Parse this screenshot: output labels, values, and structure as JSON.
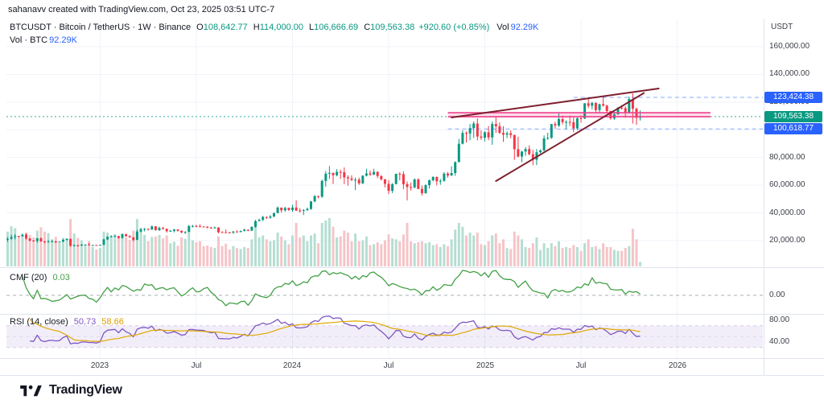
{
  "watermark": "sahanavv created with TradingView.com, Oct 23, 2025 03:51 UTC-7",
  "legend": {
    "symbol_title": "BTCUSDT · Bitcoin / TetherUS · 1W · Binance",
    "ohlc": [
      {
        "k": "O",
        "v": "108,642.77"
      },
      {
        "k": "H",
        "v": "114,000.00"
      },
      {
        "k": "L",
        "v": "106,666.69"
      },
      {
        "k": "C",
        "v": "109,563.38"
      }
    ],
    "change": "+920.60 (+0.85%)",
    "vol_label": "Vol",
    "vol_value": "92.29K",
    "row2_label": "Vol · BTC",
    "row2_value": "92.29K"
  },
  "price_axis": {
    "currency": "USDT",
    "ticks": [
      {
        "label": "160,000.00",
        "value": 160000
      },
      {
        "label": "140,000.00",
        "value": 140000
      },
      {
        "label": "120,000.00",
        "value": 120000
      },
      {
        "label": "100,000.00",
        "value": 100000
      },
      {
        "label": "80,000.00",
        "value": 80000
      },
      {
        "label": "60,000.00",
        "value": 60000
      },
      {
        "label": "40,000.00",
        "value": 40000
      },
      {
        "label": "20,000.00",
        "value": 20000
      }
    ],
    "badges": [
      {
        "text": "123,424.38",
        "price": 123424.38,
        "bg": "#2962FF"
      },
      {
        "text": "109,563.38",
        "price": 109563.38,
        "bg": "#089981"
      },
      {
        "text": "100,618.77",
        "price": 100618.77,
        "bg": "#2962FF"
      }
    ]
  },
  "time_axis": {
    "ticks": [
      {
        "label": "2023",
        "week": 25
      },
      {
        "label": "Jul",
        "week": 51
      },
      {
        "label": "2024",
        "week": 77
      },
      {
        "label": "Jul",
        "week": 103
      },
      {
        "label": "2025",
        "week": 129
      },
      {
        "label": "Jul",
        "week": 155
      },
      {
        "label": "2026",
        "week": 181
      }
    ]
  },
  "panes": {
    "cmf": {
      "label": "CMF (20)",
      "value": "0.03",
      "zero_label": "0.00",
      "zero_value": 0
    },
    "rsi": {
      "label": "RSI (14, close)",
      "value": "50.73",
      "ma_value": "58.66",
      "ticks": [
        {
          "label": "80.00",
          "value": 80
        },
        {
          "label": "40.00",
          "value": 40
        }
      ]
    }
  },
  "footer": {
    "brand": "TradingView"
  },
  "colors": {
    "up": "#089981",
    "down": "#F23645",
    "volUp": "#b5ded2",
    "volDown": "#f6c4c8",
    "blue": "#2962FF",
    "grid": "#f0f3fa",
    "divider": "#e0e3eb",
    "wedge": "#7e1f2e",
    "channel": "#f0408c",
    "channelFill": "rgba(240,64,140,0.18)",
    "cmf": "#43A047",
    "rsi": "#7E57C2",
    "rsiMa": "#E0A800",
    "band": "rgba(126,87,194,0.10)",
    "bandLine": "rgba(126,87,194,0.5)",
    "dash": "#9598a1",
    "axisText": "#3a3e47"
  },
  "chart_data": {
    "type": "candlestick",
    "symbol": "BTCUSDT",
    "exchange": "Binance",
    "interval": "1W",
    "start_week": "2022-07-11",
    "price_axis_range": [
      160000,
      20000
    ],
    "ohlc_current": {
      "o": 108642.77,
      "h": 114000.0,
      "l": 106666.69,
      "c": 109563.38,
      "vol_k": 92.29,
      "change": 920.6,
      "change_pct": 0.85
    },
    "indicators": [
      {
        "name": "CMF",
        "period": 20,
        "last": 0.03
      },
      {
        "name": "RSI",
        "period": 14,
        "source": "close",
        "last": 50.73,
        "ma_last": 58.66
      }
    ],
    "candles": [
      [
        20900,
        22500,
        19200,
        21200,
        720
      ],
      [
        21200,
        24300,
        20700,
        22600,
        830
      ],
      [
        22600,
        24700,
        20900,
        23300,
        790
      ],
      [
        23300,
        23500,
        22400,
        23200,
        610
      ],
      [
        23200,
        25000,
        22800,
        24300,
        640
      ],
      [
        24300,
        25200,
        20800,
        21500,
        700
      ],
      [
        21500,
        21800,
        19500,
        20000,
        650
      ],
      [
        20000,
        20500,
        19600,
        19800,
        600
      ],
      [
        19800,
        21800,
        18500,
        21700,
        740
      ],
      [
        21700,
        22400,
        19300,
        19400,
        810
      ],
      [
        19400,
        19700,
        18100,
        18900,
        720
      ],
      [
        18900,
        20400,
        18600,
        19300,
        690
      ],
      [
        19300,
        20500,
        19000,
        19400,
        560
      ],
      [
        19400,
        19900,
        18200,
        19100,
        610
      ],
      [
        19100,
        19600,
        18700,
        19200,
        480
      ],
      [
        19200,
        21000,
        19100,
        20600,
        590
      ],
      [
        20600,
        21500,
        20000,
        21300,
        580
      ],
      [
        21300,
        21400,
        15500,
        16300,
        980
      ],
      [
        16300,
        17200,
        15800,
        16700,
        680
      ],
      [
        16700,
        16900,
        15500,
        16500,
        590
      ],
      [
        16500,
        17400,
        16000,
        17100,
        540
      ],
      [
        17100,
        17400,
        16700,
        17100,
        440
      ],
      [
        17100,
        18400,
        16500,
        16800,
        520
      ],
      [
        16800,
        17000,
        16300,
        16800,
        400
      ],
      [
        16800,
        17000,
        16400,
        16500,
        350
      ],
      [
        16500,
        17000,
        16500,
        16900,
        380
      ],
      [
        16900,
        21300,
        16900,
        20900,
        720
      ],
      [
        20900,
        23300,
        20400,
        22700,
        700
      ],
      [
        22700,
        23800,
        22300,
        23000,
        640
      ],
      [
        23000,
        24200,
        22700,
        23300,
        660
      ],
      [
        23300,
        23400,
        21400,
        21900,
        620
      ],
      [
        21900,
        25000,
        21500,
        24600,
        680
      ],
      [
        24600,
        25100,
        22800,
        23200,
        600
      ],
      [
        23200,
        23900,
        22100,
        22400,
        550
      ],
      [
        22400,
        22600,
        19600,
        20500,
        740
      ],
      [
        20500,
        27800,
        20400,
        26500,
        980
      ],
      [
        26500,
        28800,
        26100,
        28000,
        800
      ],
      [
        28000,
        29200,
        26600,
        28500,
        650
      ],
      [
        28500,
        28800,
        27300,
        28000,
        520
      ],
      [
        28000,
        31000,
        27800,
        30300,
        610
      ],
      [
        30300,
        30500,
        27200,
        27600,
        620
      ],
      [
        27600,
        30100,
        26900,
        29200,
        650
      ],
      [
        29200,
        29900,
        27900,
        28500,
        580
      ],
      [
        28500,
        28700,
        25800,
        26800,
        640
      ],
      [
        26800,
        27700,
        26400,
        27100,
        480
      ],
      [
        27100,
        28500,
        25900,
        28100,
        510
      ],
      [
        28100,
        28300,
        26500,
        27100,
        430
      ],
      [
        27100,
        27400,
        25400,
        25900,
        600
      ],
      [
        25900,
        26800,
        24800,
        26300,
        570
      ],
      [
        26300,
        31400,
        26100,
        30500,
        760
      ],
      [
        30500,
        31300,
        29500,
        30600,
        540
      ],
      [
        30600,
        31500,
        29700,
        30300,
        500
      ],
      [
        30300,
        31800,
        29900,
        30200,
        520
      ],
      [
        30200,
        30400,
        29600,
        30100,
        420
      ],
      [
        30100,
        30300,
        28900,
        29400,
        430
      ],
      [
        29400,
        30000,
        28600,
        29000,
        400
      ],
      [
        29000,
        30200,
        28900,
        29400,
        380
      ],
      [
        29400,
        29700,
        25200,
        26100,
        620
      ],
      [
        26100,
        26800,
        25800,
        26000,
        420
      ],
      [
        26000,
        28100,
        25400,
        25900,
        470
      ],
      [
        25900,
        26400,
        25300,
        25800,
        350
      ],
      [
        25800,
        26900,
        24900,
        26500,
        420
      ],
      [
        26500,
        27500,
        26100,
        26200,
        380
      ],
      [
        26200,
        27300,
        25900,
        26900,
        360
      ],
      [
        26900,
        28600,
        26700,
        27900,
        400
      ],
      [
        27900,
        28100,
        26800,
        27200,
        380
      ],
      [
        27200,
        30300,
        26900,
        29900,
        560
      ],
      [
        29900,
        35000,
        29300,
        34100,
        820
      ],
      [
        34100,
        35900,
        34000,
        35000,
        600
      ],
      [
        35000,
        37900,
        34100,
        37100,
        640
      ],
      [
        37100,
        37400,
        35500,
        36500,
        560
      ],
      [
        36500,
        38400,
        35800,
        37400,
        520
      ],
      [
        37400,
        40200,
        36900,
        39900,
        540
      ],
      [
        39900,
        44700,
        39700,
        43800,
        700
      ],
      [
        43800,
        43900,
        40300,
        41900,
        620
      ],
      [
        41900,
        44400,
        40800,
        43600,
        540
      ],
      [
        43600,
        43800,
        41500,
        42100,
        460
      ],
      [
        42100,
        45900,
        40800,
        43900,
        640
      ],
      [
        43900,
        49000,
        41500,
        41700,
        900
      ],
      [
        41700,
        43400,
        40300,
        41600,
        600
      ],
      [
        41600,
        42800,
        38500,
        42000,
        640
      ],
      [
        42000,
        43900,
        41400,
        42900,
        520
      ],
      [
        42900,
        48600,
        42200,
        48300,
        640
      ],
      [
        48300,
        52900,
        47600,
        52100,
        680
      ],
      [
        52100,
        52500,
        50500,
        51700,
        480
      ],
      [
        51700,
        64000,
        50900,
        63100,
        900
      ],
      [
        63100,
        70200,
        59000,
        68300,
        950
      ],
      [
        68300,
        73800,
        64500,
        68900,
        1000
      ],
      [
        68900,
        68900,
        60800,
        67200,
        820
      ],
      [
        67200,
        71600,
        66400,
        69600,
        600
      ],
      [
        69600,
        71300,
        64500,
        69400,
        620
      ],
      [
        69400,
        72800,
        60700,
        65700,
        740
      ],
      [
        65700,
        67100,
        59600,
        64900,
        700
      ],
      [
        64900,
        67200,
        62800,
        63900,
        520
      ],
      [
        63900,
        65500,
        56500,
        64000,
        680
      ],
      [
        64000,
        65500,
        60200,
        61400,
        520
      ],
      [
        61400,
        67100,
        60800,
        66900,
        540
      ],
      [
        66900,
        71900,
        66300,
        68500,
        620
      ],
      [
        68500,
        70600,
        66700,
        67700,
        440
      ],
      [
        67700,
        71900,
        67300,
        69600,
        460
      ],
      [
        69600,
        70100,
        65100,
        66600,
        500
      ],
      [
        66600,
        67200,
        63400,
        64200,
        460
      ],
      [
        64200,
        64500,
        58400,
        61000,
        540
      ],
      [
        61000,
        63800,
        53500,
        55900,
        660
      ],
      [
        55900,
        61500,
        54300,
        60800,
        580
      ],
      [
        60800,
        68400,
        60600,
        68200,
        560
      ],
      [
        68200,
        69400,
        63500,
        68000,
        520
      ],
      [
        68000,
        70100,
        57100,
        60700,
        660
      ],
      [
        60700,
        62700,
        49000,
        58700,
        900
      ],
      [
        58700,
        61800,
        56100,
        58400,
        520
      ],
      [
        58400,
        64900,
        57800,
        64200,
        480
      ],
      [
        64200,
        65000,
        57100,
        57300,
        500
      ],
      [
        57300,
        59800,
        52500,
        54200,
        520
      ],
      [
        54200,
        60600,
        53900,
        60000,
        480
      ],
      [
        60000,
        64100,
        57500,
        63600,
        500
      ],
      [
        63600,
        66500,
        62700,
        65900,
        440
      ],
      [
        65900,
        66300,
        59800,
        62800,
        460
      ],
      [
        62800,
        64500,
        60300,
        63200,
        400
      ],
      [
        63200,
        69400,
        62500,
        68400,
        460
      ],
      [
        68400,
        69500,
        65500,
        67000,
        420
      ],
      [
        67000,
        73600,
        66700,
        68800,
        560
      ],
      [
        68800,
        77200,
        66800,
        76700,
        760
      ],
      [
        76700,
        93400,
        76500,
        89900,
        900
      ],
      [
        89900,
        99600,
        89400,
        97700,
        820
      ],
      [
        97700,
        98900,
        90800,
        97300,
        640
      ],
      [
        97300,
        104100,
        92500,
        101200,
        700
      ],
      [
        101200,
        106100,
        94200,
        104500,
        640
      ],
      [
        104500,
        108300,
        92300,
        95100,
        700
      ],
      [
        95100,
        99500,
        92700,
        94300,
        460
      ],
      [
        94300,
        99000,
        91600,
        98200,
        440
      ],
      [
        98200,
        102700,
        92500,
        94500,
        520
      ],
      [
        94500,
        106000,
        89200,
        104200,
        640
      ],
      [
        104200,
        109400,
        97800,
        102600,
        680
      ],
      [
        102600,
        105300,
        97100,
        97700,
        480
      ],
      [
        97700,
        102500,
        91300,
        96500,
        560
      ],
      [
        96500,
        98900,
        94000,
        97500,
        380
      ],
      [
        97500,
        99500,
        93900,
        96300,
        360
      ],
      [
        96300,
        96500,
        78300,
        86000,
        720
      ],
      [
        86000,
        95000,
        80100,
        80700,
        640
      ],
      [
        80700,
        84800,
        76600,
        84300,
        560
      ],
      [
        84300,
        87500,
        81300,
        86100,
        400
      ],
      [
        86100,
        88800,
        81600,
        82400,
        380
      ],
      [
        82400,
        85500,
        74400,
        78400,
        480
      ],
      [
        78400,
        86100,
        74500,
        83800,
        600
      ],
      [
        83800,
        85800,
        83000,
        85200,
        340
      ],
      [
        85200,
        95900,
        84400,
        93800,
        480
      ],
      [
        93800,
        97900,
        92800,
        94200,
        380
      ],
      [
        94200,
        104300,
        93400,
        104100,
        480
      ],
      [
        104100,
        105800,
        100700,
        103100,
        420
      ],
      [
        103100,
        111900,
        102100,
        107800,
        520
      ],
      [
        107800,
        110300,
        103900,
        105600,
        380
      ],
      [
        105600,
        106800,
        100400,
        105700,
        400
      ],
      [
        105700,
        110300,
        102700,
        105500,
        380
      ],
      [
        105500,
        108900,
        98200,
        101000,
        440
      ],
      [
        101000,
        108800,
        99700,
        108300,
        400
      ],
      [
        108300,
        110500,
        105100,
        108200,
        320
      ],
      [
        108200,
        119300,
        107800,
        119100,
        480
      ],
      [
        119100,
        123200,
        115700,
        117300,
        560
      ],
      [
        117300,
        120200,
        114800,
        119400,
        400
      ],
      [
        119400,
        120000,
        112000,
        114200,
        420
      ],
      [
        114200,
        118800,
        112400,
        118500,
        360
      ],
      [
        118500,
        124500,
        116800,
        117400,
        480
      ],
      [
        117400,
        118100,
        111900,
        113500,
        400
      ],
      [
        113500,
        113800,
        107300,
        108200,
        400
      ],
      [
        108200,
        113000,
        107200,
        111200,
        340
      ],
      [
        111200,
        116500,
        110800,
        115900,
        320
      ],
      [
        115900,
        117900,
        114600,
        115700,
        320
      ],
      [
        115700,
        117000,
        108700,
        112200,
        380
      ],
      [
        112200,
        124000,
        111700,
        122200,
        420
      ],
      [
        122200,
        126300,
        104500,
        115200,
        780
      ],
      [
        115200,
        116000,
        103500,
        108600,
        560
      ],
      [
        108642.77,
        114000,
        106666.69,
        109563.38,
        92.29
      ]
    ],
    "drawings": {
      "trendlines": [
        {
          "from_week": 120,
          "from_price": 108900,
          "to_week": 176,
          "to_price": 129800
        },
        {
          "from_week": 132,
          "from_price": 63000,
          "to_week": 172,
          "to_price": 126500
        }
      ],
      "channel": {
        "from_week": 119,
        "to_week": 190,
        "top_price": 112300,
        "bottom_price": 109400
      },
      "hlines": [
        {
          "price": 123424.38,
          "from_week": 153
        },
        {
          "price": 100618.77,
          "from_week": 119
        }
      ],
      "last_price": 109563.38
    }
  }
}
